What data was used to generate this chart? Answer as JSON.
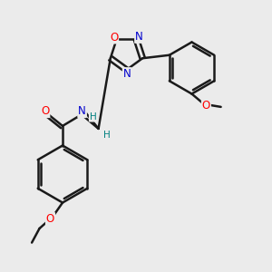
{
  "bg_color": "#ebebeb",
  "bond_color": "#1a1a1a",
  "bond_width": 1.8,
  "atom_colors": {
    "O": "#ff0000",
    "N": "#0000cd",
    "C": "#1a1a1a",
    "H": "#008080"
  },
  "font_size": 8.5,
  "fig_size": [
    3.0,
    3.0
  ],
  "dpi": 100
}
